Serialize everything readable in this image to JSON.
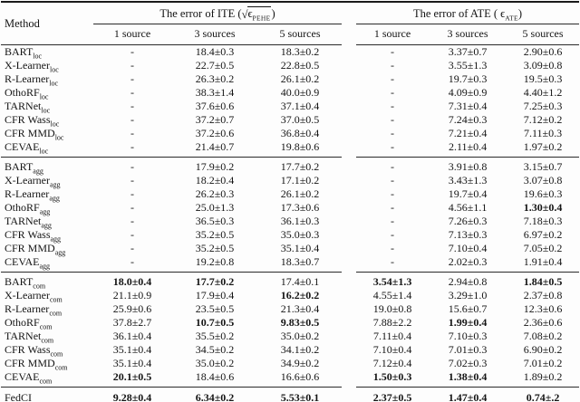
{
  "table": {
    "method_header": "Method",
    "section_headers": {
      "ite": {
        "prefix": "The error of ITE (",
        "radical": "√",
        "epsilon": "ϵ",
        "subscript": "PEHE",
        "suffix": ")"
      },
      "ate": {
        "prefix": "The error of ATE ( ",
        "epsilon": "ϵ",
        "subscript": "ATE",
        "suffix": ")"
      }
    },
    "subheaders": [
      "1 source",
      "3 sources",
      "5 sources"
    ],
    "groups": [
      {
        "name": "loc",
        "rows": [
          {
            "method": "BART",
            "subscript": "loc",
            "ite": [
              "-",
              "18.4±0.3",
              "18.3±0.2"
            ],
            "bold_ite": [],
            "ate": [
              "-",
              "3.37±0.7",
              "2.90±0.6"
            ],
            "bold_ate": []
          },
          {
            "method": "X-Learner",
            "subscript": "loc",
            "ite": [
              "-",
              "22.7±0.5",
              "22.8±0.5"
            ],
            "bold_ite": [],
            "ate": [
              "-",
              "3.55±1.3",
              "3.09±0.8"
            ],
            "bold_ate": []
          },
          {
            "method": "R-Learner",
            "subscript": "loc",
            "ite": [
              "-",
              "26.3±0.2",
              "26.1±0.2"
            ],
            "bold_ite": [],
            "ate": [
              "-",
              "19.7±0.3",
              "19.5±0.3"
            ],
            "bold_ate": []
          },
          {
            "method": "OthoRF",
            "subscript": "loc",
            "ite": [
              "-",
              "38.3±1.4",
              "40.0±0.9"
            ],
            "bold_ite": [],
            "ate": [
              "-",
              "4.09±0.9",
              "4.40±1.2"
            ],
            "bold_ate": []
          },
          {
            "method": "TARNet",
            "subscript": "loc",
            "ite": [
              "-",
              "37.6±0.6",
              "37.1±0.4"
            ],
            "bold_ite": [],
            "ate": [
              "-",
              "7.31±0.4",
              "7.25±0.3"
            ],
            "bold_ate": []
          },
          {
            "method": "CFR Wass",
            "subscript": "loc",
            "ite": [
              "-",
              "37.2±0.7",
              "37.0±0.5"
            ],
            "bold_ite": [],
            "ate": [
              "-",
              "7.24±0.3",
              "7.12±0.2"
            ],
            "bold_ate": []
          },
          {
            "method": "CFR MMD",
            "subscript": "loc",
            "ite": [
              "-",
              "37.2±0.6",
              "36.8±0.4"
            ],
            "bold_ite": [],
            "ate": [
              "-",
              "7.21±0.4",
              "7.11±0.3"
            ],
            "bold_ate": []
          },
          {
            "method": "CEVAE",
            "subscript": "loc",
            "ite": [
              "-",
              "21.4±0.7",
              "19.8±0.6"
            ],
            "bold_ite": [],
            "ate": [
              "-",
              "2.11±0.4",
              "1.97±0.2"
            ],
            "bold_ate": []
          }
        ]
      },
      {
        "name": "agg",
        "rows": [
          {
            "method": "BART",
            "subscript": "agg",
            "ite": [
              "-",
              "17.9±0.2",
              "17.7±0.2"
            ],
            "bold_ite": [],
            "ate": [
              "-",
              "3.91±0.8",
              "3.15±0.7"
            ],
            "bold_ate": []
          },
          {
            "method": "X-Learner",
            "subscript": "agg",
            "ite": [
              "-",
              "18.2±0.4",
              "17.1±0.2"
            ],
            "bold_ite": [],
            "ate": [
              "-",
              "3.43±1.3",
              "3.07±0.8"
            ],
            "bold_ate": []
          },
          {
            "method": "R-Learner",
            "subscript": "agg",
            "ite": [
              "-",
              "26.2±0.3",
              "26.1±0.2"
            ],
            "bold_ite": [],
            "ate": [
              "-",
              "19.7±0.4",
              "19.6±0.3"
            ],
            "bold_ate": []
          },
          {
            "method": "OthoRF",
            "subscript": "agg",
            "ite": [
              "-",
              "25.0±1.3",
              "17.3±0.6"
            ],
            "bold_ite": [],
            "ate": [
              "-",
              "4.56±1.1",
              "1.30±0.4"
            ],
            "bold_ate": [
              2
            ]
          },
          {
            "method": "TARNet",
            "subscript": "agg",
            "ite": [
              "-",
              "36.5±0.3",
              "36.1±0.3"
            ],
            "bold_ite": [],
            "ate": [
              "-",
              "7.26±0.3",
              "7.18±0.3"
            ],
            "bold_ate": []
          },
          {
            "method": "CFR Wass",
            "subscript": "agg",
            "ite": [
              "-",
              "35.2±0.5",
              "35.0±0.3"
            ],
            "bold_ite": [],
            "ate": [
              "-",
              "7.13±0.3",
              "6.97±0.2"
            ],
            "bold_ate": []
          },
          {
            "method": "CFR MMD",
            "subscript": "agg",
            "ite": [
              "-",
              "35.2±0.5",
              "35.1±0.4"
            ],
            "bold_ite": [],
            "ate": [
              "-",
              "7.10±0.4",
              "7.05±0.2"
            ],
            "bold_ate": []
          },
          {
            "method": "CEVAE",
            "subscript": "agg",
            "ite": [
              "-",
              "19.2±0.8",
              "18.3±0.7"
            ],
            "bold_ite": [],
            "ate": [
              "-",
              "2.02±0.3",
              "1.91±0.4"
            ],
            "bold_ate": []
          }
        ]
      },
      {
        "name": "com",
        "rows": [
          {
            "method": "BART",
            "subscript": "com",
            "ite": [
              "18.0±0.4",
              "17.7±0.2",
              "17.4±0.1"
            ],
            "bold_ite": [
              0,
              1
            ],
            "ate": [
              "3.54±1.3",
              "2.94±0.8",
              "1.84±0.5"
            ],
            "bold_ate": [
              0,
              2
            ]
          },
          {
            "method": "X-Learner",
            "subscript": "com",
            "ite": [
              "21.1±0.9",
              "17.9±0.4",
              "16.2±0.2"
            ],
            "bold_ite": [
              2
            ],
            "ate": [
              "4.55±1.4",
              "3.29±1.0",
              "2.37±0.8"
            ],
            "bold_ate": []
          },
          {
            "method": "R-Learner",
            "subscript": "com",
            "ite": [
              "25.9±0.6",
              "23.5±0.5",
              "21.3±0.4"
            ],
            "bold_ite": [],
            "ate": [
              "19.0±0.8",
              "15.6±0.7",
              "12.3±0.6"
            ],
            "bold_ate": []
          },
          {
            "method": "OthoRF",
            "subscript": "com",
            "ite": [
              "37.8±2.7",
              "10.7±0.5",
              "9.83±0.5"
            ],
            "bold_ite": [
              1,
              2
            ],
            "ate": [
              "7.88±2.2",
              "1.99±0.4",
              "2.36±0.6"
            ],
            "bold_ate": [
              1
            ]
          },
          {
            "method": "TARNet",
            "subscript": "com",
            "ite": [
              "36.1±0.4",
              "35.5±0.2",
              "35.0±0.2"
            ],
            "bold_ite": [],
            "ate": [
              "7.11±0.4",
              "7.10±0.3",
              "7.08±0.2"
            ],
            "bold_ate": []
          },
          {
            "method": "CFR Wass",
            "subscript": "com",
            "ite": [
              "35.1±0.4",
              "34.5±0.2",
              "34.1±0.2"
            ],
            "bold_ite": [],
            "ate": [
              "7.10±0.4",
              "7.01±0.3",
              "6.90±0.2"
            ],
            "bold_ate": []
          },
          {
            "method": "CFR MMD",
            "subscript": "com",
            "ite": [
              "35.1±0.4",
              "35.0±0.2",
              "34.9±0.2"
            ],
            "bold_ite": [],
            "ate": [
              "7.12±0.4",
              "7.02±0.3",
              "7.01±0.2"
            ],
            "bold_ate": []
          },
          {
            "method": "CEVAE",
            "subscript": "com",
            "ite": [
              "20.1±0.5",
              "18.4±0.6",
              "16.6±0.6"
            ],
            "bold_ite": [
              0
            ],
            "ate": [
              "1.50±0.3",
              "1.38±0.4",
              "1.89±0.2"
            ],
            "bold_ate": [
              0,
              1
            ]
          }
        ]
      }
    ],
    "footer": {
      "method": "FedCI",
      "subscript": "",
      "ite": [
        "9.28±0.4",
        "6.34±0.2",
        "5.53±0.1"
      ],
      "bold_ite": [
        0,
        1,
        2
      ],
      "ate": [
        "2.37±0.5",
        "1.47±0.4",
        "0.74±.2"
      ],
      "bold_ate": [
        0,
        1,
        2
      ]
    }
  }
}
